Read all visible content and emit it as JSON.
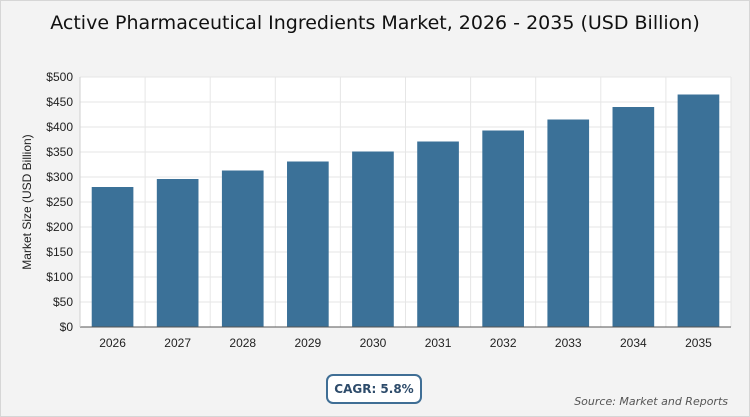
{
  "chart_data": {
    "type": "bar",
    "title": "Active Pharmaceutical Ingredients Market, 2026 - 2035 (USD Billion)",
    "xlabel": "",
    "ylabel": "Market Size (USD Billion)",
    "categories": [
      "2026",
      "2027",
      "2028",
      "2029",
      "2030",
      "2031",
      "2032",
      "2033",
      "2034",
      "2035"
    ],
    "values": [
      280,
      296,
      313,
      331,
      351,
      371,
      393,
      415,
      440,
      465
    ],
    "ylim": [
      0,
      500
    ],
    "yticks": [
      0,
      50,
      100,
      150,
      200,
      250,
      300,
      350,
      400,
      450,
      500
    ],
    "ytick_prefix": "$",
    "grid": true,
    "legend": "none",
    "bar_color": "#3b7198"
  },
  "cagr_label": "CAGR: 5.8%",
  "source": "Source: Market and Reports"
}
